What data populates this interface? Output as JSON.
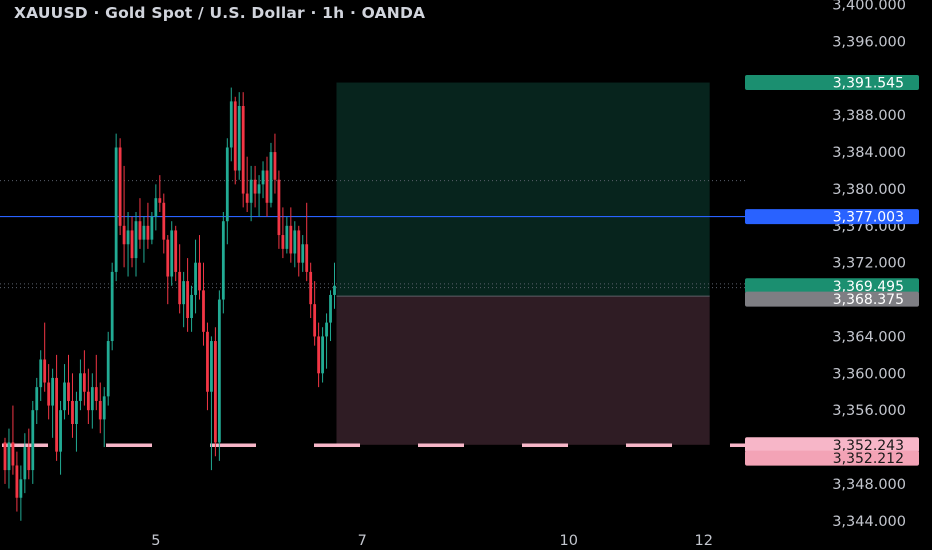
{
  "header": {
    "title": "XAUUSD · Gold Spot / U.S. Dollar · 1h · OANDA"
  },
  "colors": {
    "background": "#000000",
    "up": "#22ab94",
    "down": "#f23645",
    "target_zone": "#07241d",
    "stop_zone": "#2f1c24",
    "current_line": "#2962ff",
    "support_marks": "#f7b6c8",
    "grid": "#2a2e39"
  },
  "chart_data": {
    "type": "candlestick",
    "title": "XAUUSD · Gold Spot / U.S. Dollar · 1h · OANDA",
    "y_ticks": [
      "3,400.000",
      "3,396.000",
      "3,388.000",
      "3,384.000",
      "3,380.000",
      "3,376.000",
      "3,372.000",
      "3,364.000",
      "3,360.000",
      "3,356.000",
      "3,348.000",
      "3,344.000"
    ],
    "y_tick_values": [
      3400,
      3396,
      3388,
      3384,
      3380,
      3376,
      3372,
      3364,
      3360,
      3356,
      3348,
      3344
    ],
    "ylim": [
      3343.0,
      3400.5
    ],
    "x_ticks": [
      "5",
      "7",
      "10",
      "12"
    ],
    "x_tick_index": [
      38,
      90,
      142,
      176
    ],
    "n_slots": 186,
    "price_tags": [
      {
        "label": "3,391.545",
        "value": 3391.545,
        "color": "#1b8f70",
        "text_color": "#ffffff"
      },
      {
        "label": "3,377.003",
        "value": 3377.003,
        "color": "#2962ff",
        "text_color": "#ffffff"
      },
      {
        "label": "3,369.495",
        "value": 3369.495,
        "color": "#1b8f70",
        "text_color": "#ffffff"
      },
      {
        "label": "3,368.375",
        "value": 3368.375,
        "color": "#7e7e83",
        "text_color": "#ffffff"
      },
      {
        "label": "3,352.243",
        "value": 3352.243,
        "color": "#f7b6c8",
        "text_color": "#1a1a1a"
      },
      {
        "label": "3,352.212",
        "value": 3352.212,
        "color": "#f3a3b6",
        "text_color": "#1a1a1a"
      }
    ],
    "position": {
      "start_index": 84,
      "end_index": 178,
      "target": 3391.545,
      "entry": 3368.375,
      "stop": 3352.243
    },
    "horizontal_line": 3377.003,
    "dotted_lines": [
      3380.9,
      3369.7,
      3369.3
    ],
    "dashed_support": 3352.2,
    "ohlc": [
      [
        3352.5,
        3353.0,
        3348.0,
        3349.5
      ],
      [
        3349.5,
        3354.0,
        3347.5,
        3352.5
      ],
      [
        3352.5,
        3356.5,
        3349.0,
        3350.0
      ],
      [
        3350.0,
        3351.5,
        3345.0,
        3346.5
      ],
      [
        3346.5,
        3350.0,
        3344.0,
        3348.5
      ],
      [
        3348.5,
        3353.5,
        3347.0,
        3352.0
      ],
      [
        3352.0,
        3354.0,
        3348.5,
        3349.5
      ],
      [
        3349.5,
        3357.0,
        3348.0,
        3356.0
      ],
      [
        3356.0,
        3359.5,
        3354.5,
        3358.5
      ],
      [
        3358.5,
        3362.5,
        3357.0,
        3361.5
      ],
      [
        3361.5,
        3365.5,
        3358.0,
        3359.0
      ],
      [
        3359.0,
        3361.0,
        3355.0,
        3356.5
      ],
      [
        3356.5,
        3360.5,
        3353.0,
        3359.5
      ],
      [
        3359.5,
        3362.0,
        3350.5,
        3351.5
      ],
      [
        3351.5,
        3357.0,
        3349.0,
        3356.0
      ],
      [
        3356.0,
        3361.0,
        3355.0,
        3359.0
      ],
      [
        3359.0,
        3362.0,
        3355.5,
        3357.0
      ],
      [
        3357.0,
        3360.0,
        3353.0,
        3354.5
      ],
      [
        3354.5,
        3358.0,
        3351.5,
        3357.0
      ],
      [
        3357.0,
        3361.5,
        3356.0,
        3360.0
      ],
      [
        3360.0,
        3362.5,
        3356.5,
        3358.0
      ],
      [
        3358.0,
        3360.5,
        3354.5,
        3356.0
      ],
      [
        3356.0,
        3360.0,
        3354.0,
        3358.5
      ],
      [
        3358.5,
        3362.0,
        3356.0,
        3357.0
      ],
      [
        3357.0,
        3359.0,
        3353.5,
        3355.0
      ],
      [
        3355.0,
        3358.5,
        3352.0,
        3357.5
      ],
      [
        3357.5,
        3364.5,
        3356.5,
        3363.5
      ],
      [
        3363.5,
        3372.0,
        3362.5,
        3371.0
      ],
      [
        3371.0,
        3386.0,
        3370.0,
        3384.5
      ],
      [
        3384.5,
        3385.5,
        3375.0,
        3376.0
      ],
      [
        3376.0,
        3382.5,
        3371.5,
        3374.0
      ],
      [
        3374.0,
        3377.5,
        3370.5,
        3375.5
      ],
      [
        3375.5,
        3377.0,
        3371.5,
        3372.5
      ],
      [
        3372.5,
        3377.5,
        3370.5,
        3376.5
      ],
      [
        3376.5,
        3379.0,
        3373.5,
        3374.5
      ],
      [
        3374.5,
        3377.0,
        3372.0,
        3376.0
      ],
      [
        3376.0,
        3378.5,
        3373.5,
        3374.5
      ],
      [
        3374.5,
        3377.5,
        3374.0,
        3377.0
      ],
      [
        3377.0,
        3380.5,
        3375.5,
        3379.0
      ],
      [
        3379.0,
        3381.5,
        3377.5,
        3378.5
      ],
      [
        3378.5,
        3379.5,
        3373.0,
        3374.5
      ],
      [
        3374.5,
        3375.0,
        3367.5,
        3370.5
      ],
      [
        3370.5,
        3376.5,
        3369.5,
        3375.5
      ],
      [
        3375.5,
        3376.0,
        3370.0,
        3371.0
      ],
      [
        3371.0,
        3374.0,
        3366.5,
        3367.5
      ],
      [
        3367.5,
        3371.0,
        3365.0,
        3370.0
      ],
      [
        3370.0,
        3372.5,
        3364.5,
        3366.0
      ],
      [
        3366.0,
        3369.5,
        3364.5,
        3368.5
      ],
      [
        3368.5,
        3374.5,
        3366.5,
        3372.0
      ],
      [
        3372.0,
        3375.0,
        3368.0,
        3369.0
      ],
      [
        3369.0,
        3372.0,
        3363.0,
        3364.5
      ],
      [
        3364.5,
        3365.5,
        3356.0,
        3358.0
      ],
      [
        3358.0,
        3364.0,
        3349.5,
        3363.5
      ],
      [
        3363.5,
        3365.0,
        3351.0,
        3352.5
      ],
      [
        3352.5,
        3369.0,
        3350.5,
        3368.0
      ],
      [
        3368.0,
        3377.5,
        3366.5,
        3376.5
      ],
      [
        3376.5,
        3385.5,
        3374.0,
        3384.5
      ],
      [
        3384.5,
        3391.0,
        3383.0,
        3389.5
      ],
      [
        3389.5,
        3390.0,
        3380.5,
        3382.0
      ],
      [
        3382.0,
        3390.5,
        3381.0,
        3389.0
      ],
      [
        3389.0,
        3390.5,
        3378.0,
        3379.5
      ],
      [
        3379.5,
        3383.5,
        3377.5,
        3378.5
      ],
      [
        3378.5,
        3382.5,
        3376.5,
        3381.0
      ],
      [
        3381.0,
        3382.5,
        3378.0,
        3379.5
      ],
      [
        3379.5,
        3381.5,
        3377.0,
        3380.5
      ],
      [
        3380.5,
        3383.0,
        3379.0,
        3382.0
      ],
      [
        3382.0,
        3383.5,
        3377.0,
        3378.5
      ],
      [
        3378.5,
        3385.0,
        3378.0,
        3384.0
      ],
      [
        3384.0,
        3386.0,
        3379.5,
        3381.0
      ],
      [
        3381.0,
        3382.0,
        3373.5,
        3375.0
      ],
      [
        3375.0,
        3378.0,
        3372.5,
        3373.5
      ],
      [
        3373.5,
        3377.0,
        3373.0,
        3376.0
      ],
      [
        3376.0,
        3378.0,
        3372.0,
        3373.0
      ],
      [
        3373.0,
        3376.5,
        3371.5,
        3375.5
      ],
      [
        3375.5,
        3376.0,
        3370.5,
        3372.0
      ],
      [
        3372.0,
        3375.0,
        3371.0,
        3374.0
      ],
      [
        3374.0,
        3378.5,
        3370.0,
        3371.0
      ],
      [
        3371.0,
        3372.0,
        3366.0,
        3367.5
      ],
      [
        3367.5,
        3370.0,
        3363.0,
        3364.0
      ],
      [
        3364.0,
        3365.5,
        3358.5,
        3360.0
      ],
      [
        3360.0,
        3365.0,
        3359.0,
        3364.0
      ],
      [
        3364.0,
        3366.5,
        3360.5,
        3365.5
      ],
      [
        3365.5,
        3369.0,
        3363.5,
        3368.5
      ],
      [
        3368.5,
        3372.0,
        3367.0,
        3369.5
      ]
    ],
    "ohlc_slot_offset": 0
  }
}
